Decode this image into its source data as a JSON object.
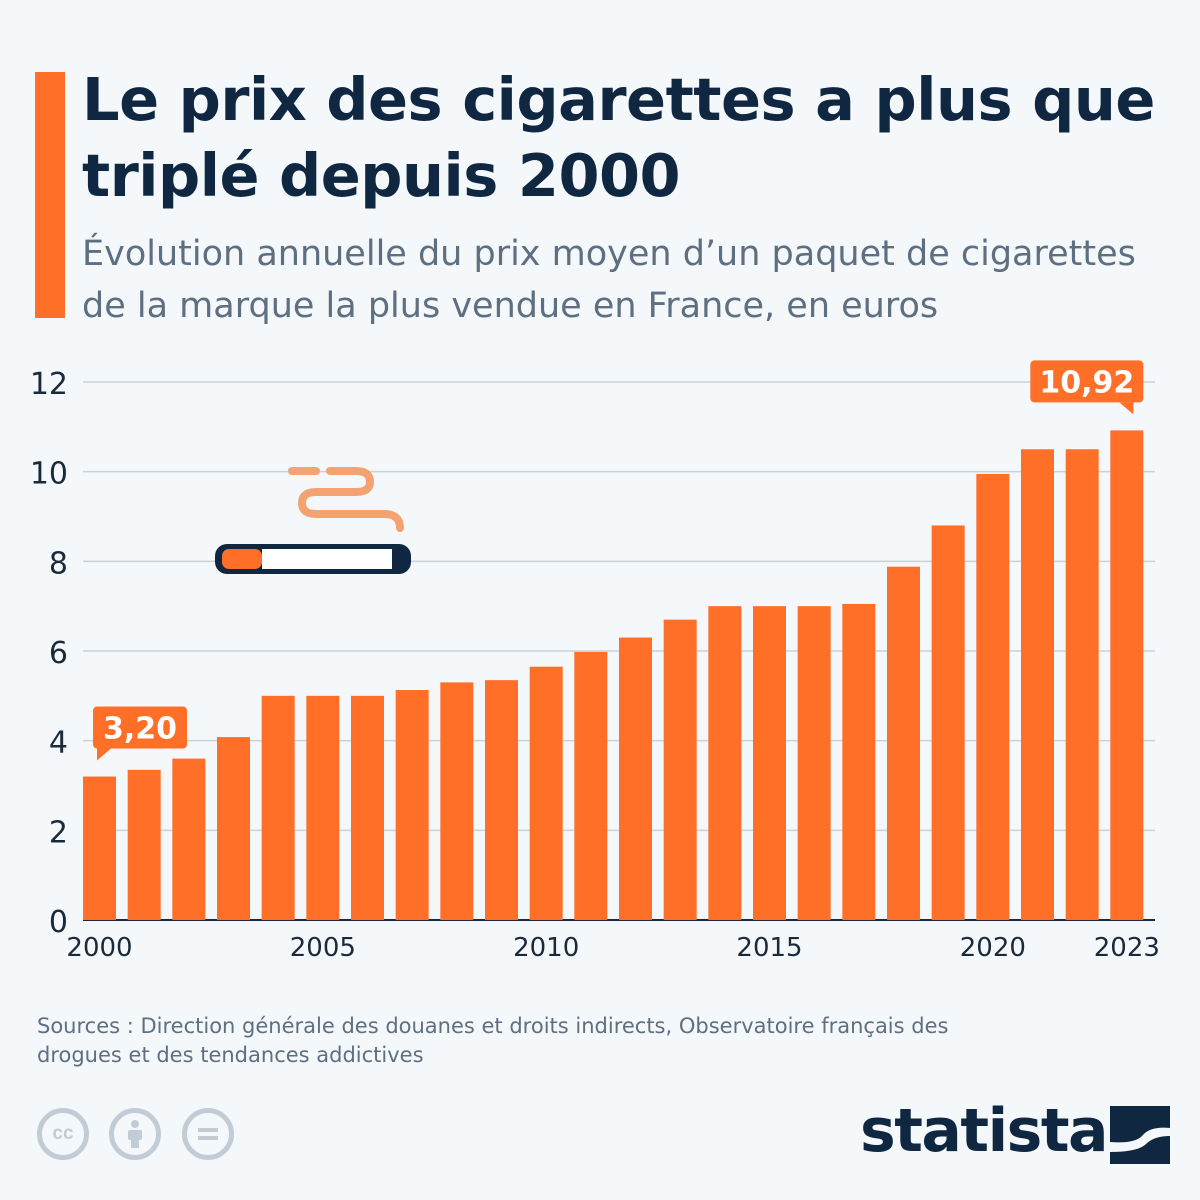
{
  "header": {
    "title": "Le prix des cigarettes a plus que triplé depuis 2000",
    "subtitle": "Évolution annuelle du prix moyen d’un paquet de cigarettes de la marque la plus vendue en France, en euros"
  },
  "chart_data": {
    "type": "bar",
    "categories": [
      "2000",
      "2001",
      "2002",
      "2003",
      "2004",
      "2005",
      "2006",
      "2007",
      "2008",
      "2009",
      "2010",
      "2011",
      "2012",
      "2013",
      "2014",
      "2015",
      "2016",
      "2017",
      "2018",
      "2019",
      "2020",
      "2021",
      "2022",
      "2023"
    ],
    "values": [
      3.2,
      3.35,
      3.6,
      4.08,
      5.0,
      5.0,
      5.0,
      5.13,
      5.3,
      5.35,
      5.65,
      5.98,
      6.3,
      6.7,
      7.0,
      7.0,
      7.0,
      7.05,
      7.88,
      8.8,
      9.95,
      10.5,
      10.5,
      10.92
    ],
    "x_tick_labels": [
      "2000",
      "2005",
      "2010",
      "2015",
      "2020",
      "2023"
    ],
    "y_ticks": [
      "0",
      "2",
      "4",
      "6",
      "8",
      "10",
      "12"
    ],
    "ylim": [
      0,
      12
    ],
    "grid": true,
    "annotations": [
      {
        "category": "2000",
        "label": "3,20"
      },
      {
        "category": "2023",
        "label": "10,92"
      }
    ],
    "bar_color": "#ff6f27"
  },
  "illustration": {
    "icon": "cigarette-icon",
    "colors": {
      "smoke": "#f4a272",
      "filter": "#ff6f27",
      "tip": "#0f2741"
    }
  },
  "footer": {
    "sources": "Sources : Direction générale des douanes et droits indirects, Observatoire français des drogues et des tendances addictives",
    "license_icons": [
      "cc-icon",
      "attribution-icon",
      "no-derivatives-icon"
    ],
    "brand": "statista"
  },
  "colors": {
    "accent": "#ff6f27",
    "title": "#0f2741",
    "text": "#5d6f80",
    "background": "#f5f8fb"
  }
}
